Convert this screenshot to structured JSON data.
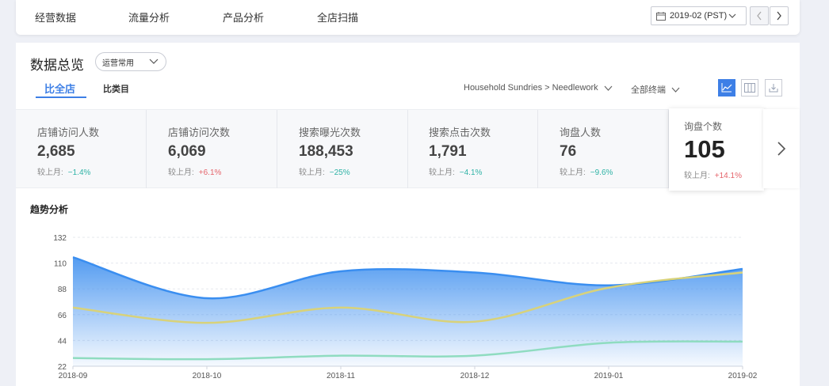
{
  "nav": {
    "items": [
      "经营数据",
      "流量分析",
      "产品分析",
      "全店扫描"
    ],
    "date_label": "2019-02 (PST)"
  },
  "overview": {
    "title": "数据总览",
    "select_value": "运营常用",
    "tabs": [
      "比全店",
      "比类目"
    ],
    "category_filter": "Household Sundries > Needlework",
    "terminal_filter": "全部终端"
  },
  "metrics": [
    {
      "label": "店铺访问人数",
      "value": "2,685",
      "compare_label": "较上月:",
      "delta": "−1.4%",
      "trend": "down"
    },
    {
      "label": "店铺访问次数",
      "value": "6,069",
      "compare_label": "较上月:",
      "delta": "+6.1%",
      "trend": "up"
    },
    {
      "label": "搜索曝光次数",
      "value": "188,453",
      "compare_label": "较上月:",
      "delta": "−25%",
      "trend": "down"
    },
    {
      "label": "搜索点击次数",
      "value": "1,791",
      "compare_label": "较上月:",
      "delta": "−4.1%",
      "trend": "down"
    },
    {
      "label": "询盘人数",
      "value": "76",
      "compare_label": "较上月:",
      "delta": "−9.6%",
      "trend": "down"
    },
    {
      "label": "询盘个数",
      "value": "105",
      "compare_label": "较上月:",
      "delta": "+14.1%",
      "trend": "up"
    }
  ],
  "colors": {
    "accent": "#3d7fe6",
    "down": "#2fb3a6",
    "up": "#e5646b"
  },
  "trend": {
    "title": "趋势分析"
  },
  "chart_data": {
    "type": "area",
    "x": [
      "2018-09",
      "2018-10",
      "2018-11",
      "2018-12",
      "2019-01",
      "2019-02"
    ],
    "yticks": [
      22,
      44,
      66,
      88,
      110,
      132
    ],
    "ylim": [
      22,
      132
    ],
    "grid": true,
    "series": [
      {
        "values": [
          115,
          80,
          103,
          102,
          91,
          105
        ],
        "color": "#3a8ef0",
        "fill": true
      },
      {
        "values": [
          72,
          59,
          72,
          60,
          89,
          102
        ],
        "color": "#d8d27a"
      },
      {
        "values": [
          29,
          28,
          31,
          31,
          42,
          43
        ],
        "color": "#8fdcc0"
      }
    ]
  }
}
